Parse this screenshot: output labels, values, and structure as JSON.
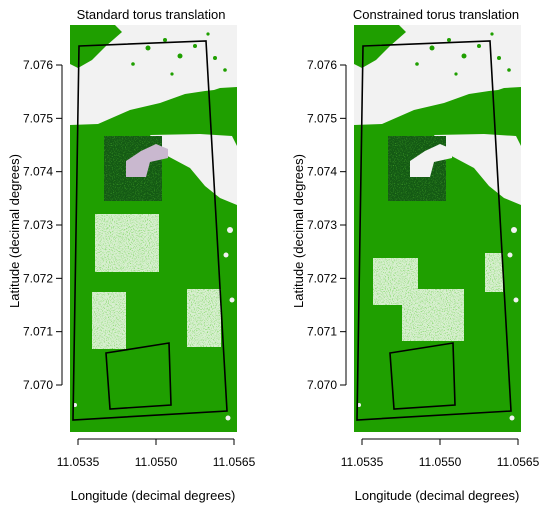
{
  "chart_data": [
    {
      "type": "map",
      "title": "Standard torus translation",
      "xlabel": "Longitude (decimal degrees)",
      "ylabel": "Latitude (decimal degrees)",
      "xticks": [
        "11.0535",
        "11.0550",
        "11.0565"
      ],
      "xtick_values": [
        11.0535,
        11.055,
        11.0565
      ],
      "yticks": [
        "7.070",
        "7.071",
        "7.072",
        "7.073",
        "7.074",
        "7.075",
        "7.076"
      ],
      "ytick_values": [
        7.07,
        7.071,
        7.072,
        7.073,
        7.074,
        7.075,
        7.076
      ],
      "xlim": [
        11.05343,
        11.05656
      ],
      "ylim": [
        7.06935,
        7.07671
      ],
      "layers": {
        "forest_color": "#1f9f00",
        "open_color": "#f2f2f2",
        "dark_patch_color": "#145a14",
        "light_patch_color": "#d8efd0"
      },
      "large_polygon": [
        [
          11.05347,
          7.07641
        ],
        [
          11.05616,
          7.07649
        ],
        [
          11.05656,
          7.06955
        ],
        [
          11.05353,
          7.06937
        ]
      ],
      "small_polygon": [
        [
          11.05405,
          7.06978
        ],
        [
          11.05525,
          7.06985
        ],
        [
          11.05522,
          7.07075
        ],
        [
          11.054,
          7.07073
        ]
      ],
      "inner_polygon": [
        [
          11.05412,
          7.06963
        ],
        [
          11.05535,
          7.06967
        ],
        [
          11.05533,
          7.07047
        ],
        [
          11.05407,
          7.07045
        ]
      ],
      "shifted_patches": [
        {
          "kind": "dark",
          "lon": [
            11.05396,
            11.05503
          ],
          "lat": [
            7.07352,
            7.07462
          ]
        },
        {
          "kind": "light",
          "lon": [
            11.05385,
            11.05503
          ],
          "lat": [
            7.07206,
            7.07305
          ]
        },
        {
          "kind": "light",
          "lon": [
            11.0537,
            11.05427
          ],
          "lat": [
            7.07043,
            7.07122
          ]
        },
        {
          "kind": "light",
          "lon": [
            11.0558,
            11.0564
          ],
          "lat": [
            7.07061,
            7.07124
          ]
        }
      ]
    },
    {
      "type": "map",
      "title": "Constrained torus translation",
      "xlabel": "Longitude (decimal degrees)",
      "ylabel": "Latitude (decimal degrees)",
      "xticks": [
        "11.0535",
        "11.0550",
        "11.0565"
      ],
      "xtick_values": [
        11.0535,
        11.055,
        11.0565
      ],
      "yticks": [
        "7.070",
        "7.071",
        "7.072",
        "7.073",
        "7.074",
        "7.075",
        "7.076"
      ],
      "ytick_values": [
        7.07,
        7.071,
        7.072,
        7.073,
        7.074,
        7.075,
        7.076
      ],
      "xlim": [
        11.05343,
        11.05656
      ],
      "ylim": [
        7.06935,
        7.07671
      ],
      "layers": {
        "forest_color": "#1f9f00",
        "open_color": "#f2f2f2",
        "dark_patch_color": "#145a14",
        "light_patch_color": "#d8efd0"
      },
      "large_polygon": [
        [
          11.05347,
          7.07641
        ],
        [
          11.05616,
          7.07649
        ],
        [
          11.05656,
          7.06955
        ],
        [
          11.05353,
          7.06937
        ]
      ],
      "small_polygon": [
        [
          11.05405,
          7.06978
        ],
        [
          11.05525,
          7.06985
        ],
        [
          11.05522,
          7.07075
        ],
        [
          11.054,
          7.07073
        ]
      ],
      "inner_polygon": [
        [
          11.05412,
          7.06963
        ],
        [
          11.05535,
          7.06967
        ],
        [
          11.05533,
          7.07047
        ],
        [
          11.05407,
          7.07045
        ]
      ],
      "shifted_patches": [
        {
          "kind": "dark",
          "lon": [
            11.05396,
            11.05503
          ],
          "lat": [
            7.07352,
            7.07462
          ]
        },
        {
          "kind": "light",
          "lon": [
            11.0538,
            11.05463
          ],
          "lat": [
            7.07119,
            7.07206
          ]
        },
        {
          "kind": "light",
          "lon": [
            11.05418,
            11.0552
          ],
          "lat": [
            7.07045,
            7.07141
          ]
        },
        {
          "kind": "light",
          "lon": [
            11.05607,
            11.0564
          ],
          "lat": [
            7.07086,
            7.07158
          ]
        }
      ]
    }
  ]
}
